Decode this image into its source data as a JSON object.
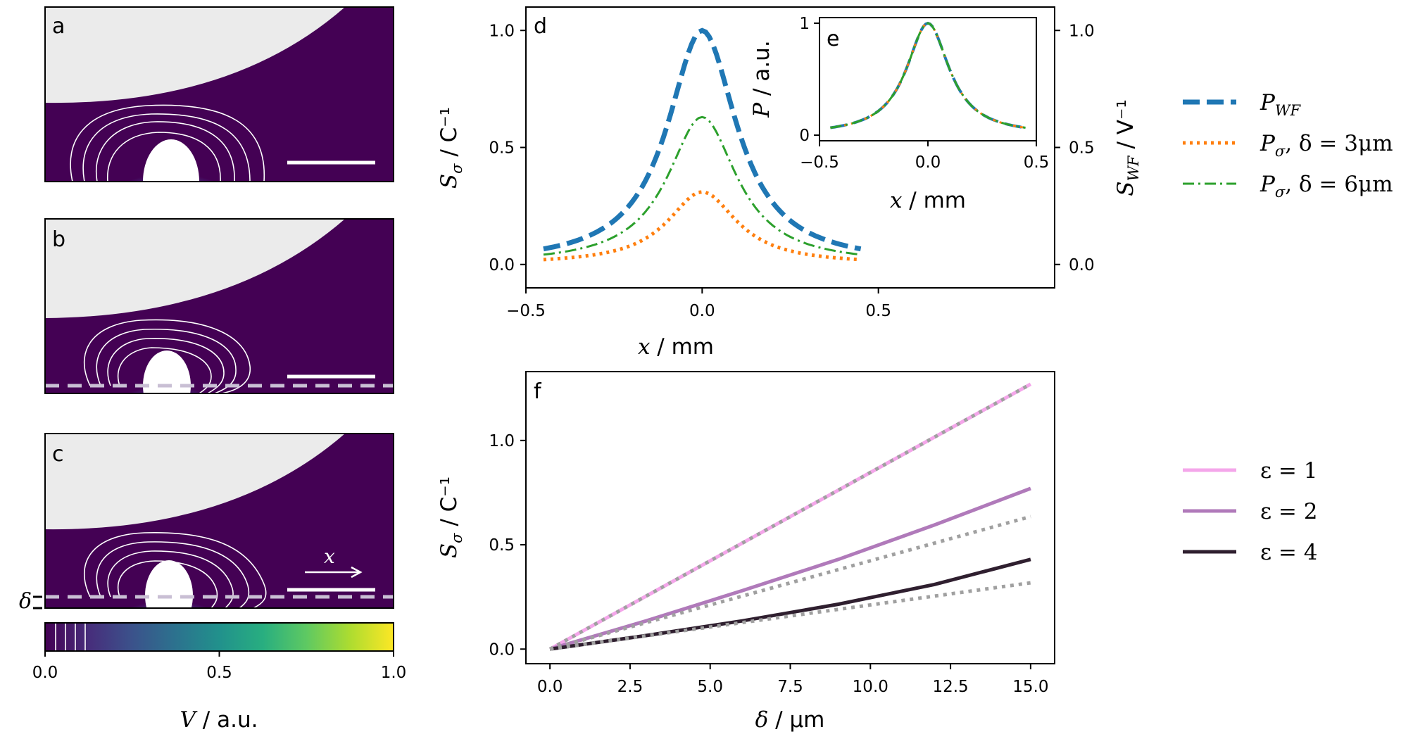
{
  "colors": {
    "viridis_dark": "#440154",
    "electrode_grey": "#ebebeb",
    "wf_blue": "#1f77b4",
    "orange": "#ff7f0e",
    "green": "#2ca02c",
    "eps1": "#f4a6ea",
    "eps2": "#b07aba",
    "eps4": "#2f1f2f",
    "dotted_grey": "#a0a0a0"
  },
  "panels": {
    "a": {
      "letter": "a"
    },
    "b": {
      "letter": "b"
    },
    "c": {
      "letter": "c",
      "arrow_label": "x",
      "delta_label": "δ"
    },
    "colorbar": {
      "ticks": [
        "0.0",
        "0.5",
        "1.0"
      ],
      "label_var": "V",
      "label_unit": " / a.u.",
      "range": [
        0,
        1
      ]
    }
  },
  "chart_data": [
    {
      "id": "d",
      "type": "line",
      "letter": "d",
      "xlabel_var": "x",
      "xlabel_unit": " / mm",
      "ylabel_var": "S",
      "ylabel_sub": "σ",
      "ylabel_unit": " / C⁻¹",
      "y2label_var": "S",
      "y2label_sub": "WF",
      "y2label_unit": " / V⁻¹",
      "xlim": [
        -0.5,
        1.0
      ],
      "ylim": [
        -0.1,
        1.1
      ],
      "xticks": [
        "−0.5",
        "0.0",
        "0.5"
      ],
      "yticks": [
        "0.0",
        "0.5",
        "1.0"
      ],
      "y2ticks": [
        "0.0",
        "0.5",
        "1.0"
      ],
      "series": [
        {
          "name_var": "P",
          "name_sub": "WF",
          "name_rest": "",
          "style": "dashed",
          "color": "#1f77b4",
          "peak": 1.0
        },
        {
          "name_var": "P",
          "name_sub": "σ",
          "name_rest": ", δ = 3μm",
          "style": "dotted",
          "color": "#ff7f0e",
          "peak": 0.31
        },
        {
          "name_var": "P",
          "name_sub": "σ",
          "name_rest": ", δ = 6μm",
          "style": "dashdot",
          "color": "#2ca02c",
          "peak": 0.63
        }
      ],
      "x_range": [
        -0.45,
        0.45
      ],
      "profile_width_mm": 0.12
    },
    {
      "id": "e",
      "type": "line",
      "letter": "e",
      "xlabel_var": "x",
      "xlabel_unit": " / mm",
      "ylabel_var": "P",
      "ylabel_unit": " / a.u.",
      "xlim": [
        -0.5,
        0.5
      ],
      "ylim": [
        -0.05,
        1.05
      ],
      "xticks": [
        "−0.5",
        "0.0",
        "0.5"
      ],
      "yticks": [
        "0",
        "1"
      ],
      "series_peaks": [
        1.0,
        1.0,
        1.0
      ]
    },
    {
      "id": "f",
      "type": "line",
      "letter": "f",
      "xlabel_var": "δ",
      "xlabel_unit": " / μm",
      "ylabel_var": "S",
      "ylabel_sub": "σ",
      "ylabel_unit": " / C⁻¹",
      "xlim": [
        -0.75,
        15.75
      ],
      "ylim": [
        -0.07,
        1.33
      ],
      "xticks": [
        "0.0",
        "2.5",
        "5.0",
        "7.5",
        "10.0",
        "12.5",
        "15.0"
      ],
      "yticks": [
        "0.0",
        "0.5",
        "1.0"
      ],
      "series": [
        {
          "name": "ε = 1",
          "color": "#f4a6ea",
          "x": [
            0,
            3,
            6,
            9,
            12,
            15
          ],
          "y": [
            0,
            0.254,
            0.508,
            0.762,
            1.016,
            1.27
          ]
        },
        {
          "name": "ε = 2",
          "color": "#b07aba",
          "x": [
            0,
            3,
            6,
            9,
            12,
            15
          ],
          "y": [
            0,
            0.135,
            0.28,
            0.43,
            0.595,
            0.77
          ]
        },
        {
          "name": "ε = 4",
          "color": "#2f1f2f",
          "x": [
            0,
            3,
            6,
            9,
            12,
            15
          ],
          "y": [
            0,
            0.065,
            0.135,
            0.215,
            0.31,
            0.43
          ]
        }
      ],
      "reference_lines": [
        {
          "x": [
            0,
            15
          ],
          "y": [
            0,
            1.27
          ]
        },
        {
          "x": [
            0,
            15
          ],
          "y": [
            0,
            0.635
          ]
        },
        {
          "x": [
            0,
            15
          ],
          "y": [
            0,
            0.3175
          ]
        }
      ]
    }
  ]
}
